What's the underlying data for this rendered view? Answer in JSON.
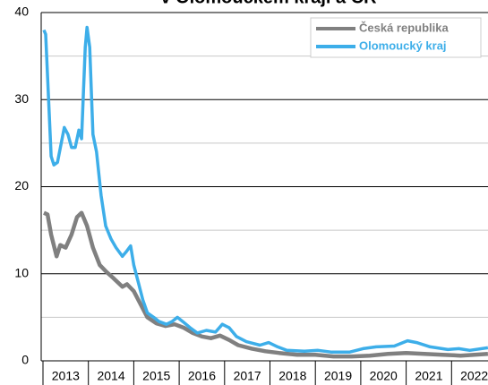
{
  "chart_data": {
    "type": "line",
    "title": "v Olomouckém kraji a ČR",
    "categories": [
      "2013",
      "2014",
      "2015",
      "2016",
      "2017",
      "2018",
      "2019",
      "2020",
      "2021",
      "2022"
    ],
    "xlim": [
      2013,
      2022.8
    ],
    "xticks": [
      2013,
      2014,
      2015,
      2016,
      2017,
      2018,
      2019,
      2020,
      2021,
      2022
    ],
    "ylim": [
      0,
      40
    ],
    "yticks": [
      0,
      10,
      20,
      30,
      40
    ],
    "minor_yticks": [
      5,
      15,
      25,
      35
    ],
    "grid": true,
    "legend": "upper right",
    "series": [
      {
        "name": "Česká republika",
        "color": "#808080",
        "x": [
          2013.02,
          2013.1,
          2013.18,
          2013.3,
          2013.38,
          2013.5,
          2013.63,
          2013.75,
          2013.85,
          2013.97,
          2014.1,
          2014.25,
          2014.4,
          2014.55,
          2014.75,
          2014.85,
          2015.0,
          2015.15,
          2015.3,
          2015.5,
          2015.7,
          2015.9,
          2016.1,
          2016.3,
          2016.5,
          2016.7,
          2016.9,
          2017.1,
          2017.3,
          2017.6,
          2017.9,
          2018.2,
          2018.6,
          2019.0,
          2019.4,
          2019.8,
          2020.2,
          2020.6,
          2021.0,
          2021.4,
          2021.8,
          2022.2,
          2022.8
        ],
        "values": [
          17,
          16.8,
          14.5,
          12,
          13.3,
          13,
          14.5,
          16.5,
          17,
          15.5,
          13,
          11,
          10.2,
          9.5,
          8.5,
          8.8,
          8,
          6.5,
          5,
          4.3,
          4,
          4.2,
          3.8,
          3.2,
          2.8,
          2.6,
          2.9,
          2.4,
          1.8,
          1.4,
          1.1,
          0.9,
          0.7,
          0.7,
          0.5,
          0.5,
          0.6,
          0.8,
          0.9,
          0.8,
          0.7,
          0.6,
          0.8
        ]
      },
      {
        "name": "Olomoucký kraj",
        "color": "#3daee9",
        "x": [
          2013.02,
          2013.06,
          2013.08,
          2013.18,
          2013.24,
          2013.32,
          2013.47,
          2013.55,
          2013.63,
          2013.71,
          2013.79,
          2013.85,
          2013.93,
          2013.97,
          2014.03,
          2014.1,
          2014.18,
          2014.28,
          2014.38,
          2014.5,
          2014.61,
          2014.75,
          2014.83,
          2014.93,
          2015.0,
          2015.1,
          2015.2,
          2015.3,
          2015.44,
          2015.56,
          2015.72,
          2015.84,
          2015.96,
          2016.08,
          2016.24,
          2016.4,
          2016.6,
          2016.8,
          2016.95,
          2017.1,
          2017.26,
          2017.48,
          2017.78,
          2017.97,
          2018.17,
          2018.37,
          2018.76,
          2019.06,
          2019.36,
          2019.75,
          2020.05,
          2020.34,
          2020.74,
          2021.03,
          2021.23,
          2021.53,
          2021.92,
          2022.16,
          2022.4,
          2022.8
        ],
        "values": [
          38,
          37.5,
          35,
          23.5,
          22.5,
          22.8,
          26.8,
          26,
          24.5,
          24.5,
          26.5,
          25.5,
          36,
          38.3,
          36,
          26,
          24,
          19,
          15.5,
          14,
          13,
          12,
          12.5,
          13.2,
          11,
          9,
          7,
          5.5,
          5,
          4.5,
          4.2,
          4.5,
          5,
          4.5,
          3.8,
          3.2,
          3.5,
          3.3,
          4.2,
          3.8,
          2.8,
          2.2,
          1.8,
          2.1,
          1.6,
          1.2,
          1.1,
          1.2,
          1.0,
          1.0,
          1.4,
          1.6,
          1.7,
          2.3,
          2.1,
          1.6,
          1.3,
          1.4,
          1.2,
          1.5
        ]
      }
    ]
  }
}
